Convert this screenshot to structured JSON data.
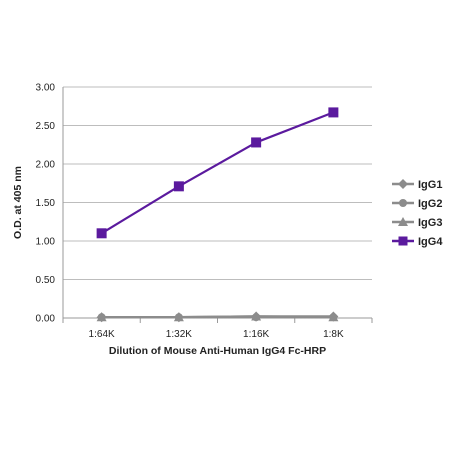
{
  "chart_data": {
    "type": "line",
    "title": "",
    "xlabel": "Dilution of Mouse Anti-Human IgG4 Fc-HRP",
    "ylabel": "O.D. at 405 nm",
    "categories": [
      "1:64K",
      "1:32K",
      "1:16K",
      "1:8K"
    ],
    "ylim": [
      0,
      3.0
    ],
    "yticks": [
      "0.00",
      "0.50",
      "1.00",
      "1.50",
      "2.00",
      "2.50",
      "3.00"
    ],
    "grid": true,
    "legend_position": "right",
    "series": [
      {
        "name": "IgG1",
        "values": [
          0.01,
          0.01,
          0.02,
          0.02
        ],
        "color": "#8c8c8c",
        "marker": "diamond"
      },
      {
        "name": "IgG2",
        "values": [
          0.01,
          0.01,
          0.01,
          0.01
        ],
        "color": "#8c8c8c",
        "marker": "circle"
      },
      {
        "name": "IgG3",
        "values": [
          0.01,
          0.01,
          0.02,
          0.01
        ],
        "color": "#8c8c8c",
        "marker": "triangle"
      },
      {
        "name": "IgG4",
        "values": [
          1.1,
          1.71,
          2.28,
          2.67
        ],
        "color": "#5b1a9e",
        "marker": "square"
      }
    ]
  }
}
